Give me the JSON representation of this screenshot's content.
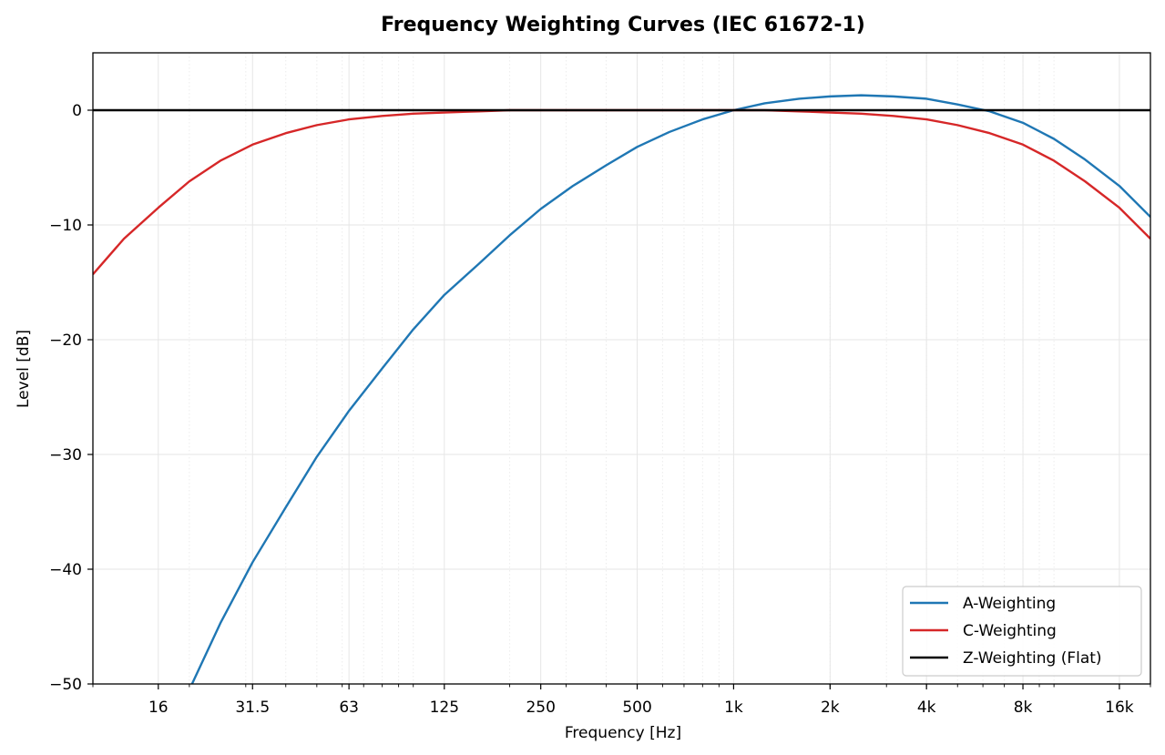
{
  "chart_data": {
    "type": "line",
    "title": "Frequency Weighting Curves (IEC 61672-1)",
    "xlabel": "Frequency [Hz]",
    "ylabel": "Level [dB]",
    "xscale": "log",
    "xlim": [
      10,
      20000
    ],
    "ylim": [
      -50,
      5
    ],
    "xticks": [
      {
        "value": 16,
        "label": "16"
      },
      {
        "value": 31.5,
        "label": "31.5"
      },
      {
        "value": 63,
        "label": "63"
      },
      {
        "value": 125,
        "label": "125"
      },
      {
        "value": 250,
        "label": "250"
      },
      {
        "value": 500,
        "label": "500"
      },
      {
        "value": 1000,
        "label": "1k"
      },
      {
        "value": 2000,
        "label": "2k"
      },
      {
        "value": 4000,
        "label": "4k"
      },
      {
        "value": 8000,
        "label": "8k"
      },
      {
        "value": 16000,
        "label": "16k"
      }
    ],
    "yticks": [
      {
        "value": 0,
        "label": "0"
      },
      {
        "value": -10,
        "label": "−10"
      },
      {
        "value": -20,
        "label": "−20"
      },
      {
        "value": -30,
        "label": "−30"
      },
      {
        "value": -40,
        "label": "−40"
      },
      {
        "value": -50,
        "label": "−50"
      }
    ],
    "grid": true,
    "legend_position": "lower-right",
    "series": [
      {
        "name": "A-Weighting",
        "color": "#1f77b4",
        "x": [
          20,
          25,
          31.5,
          40,
          50,
          63,
          80,
          100,
          125,
          160,
          200,
          250,
          315,
          400,
          500,
          630,
          800,
          1000,
          1250,
          1600,
          2000,
          2500,
          3150,
          4000,
          5000,
          6300,
          8000,
          10000,
          12500,
          16000,
          20000
        ],
        "y": [
          -50.5,
          -44.7,
          -39.4,
          -34.6,
          -30.2,
          -26.2,
          -22.5,
          -19.1,
          -16.1,
          -13.4,
          -10.9,
          -8.6,
          -6.6,
          -4.8,
          -3.2,
          -1.9,
          -0.8,
          0.0,
          0.6,
          1.0,
          1.2,
          1.3,
          1.2,
          1.0,
          0.5,
          -0.1,
          -1.1,
          -2.5,
          -4.3,
          -6.6,
          -9.3
        ]
      },
      {
        "name": "C-Weighting",
        "color": "#d62728",
        "x": [
          10,
          12.5,
          16,
          20,
          25,
          31.5,
          40,
          50,
          63,
          80,
          100,
          125,
          160,
          200,
          250,
          315,
          400,
          500,
          630,
          800,
          1000,
          1250,
          1600,
          2000,
          2500,
          3150,
          4000,
          5000,
          6300,
          8000,
          10000,
          12500,
          16000,
          20000
        ],
        "y": [
          -14.3,
          -11.2,
          -8.5,
          -6.2,
          -4.4,
          -3.0,
          -2.0,
          -1.3,
          -0.8,
          -0.5,
          -0.3,
          -0.2,
          -0.1,
          0.0,
          0.0,
          0.0,
          0.0,
          0.0,
          0.0,
          0.0,
          0.0,
          0.0,
          -0.1,
          -0.2,
          -0.3,
          -0.5,
          -0.8,
          -1.3,
          -2.0,
          -3.0,
          -4.4,
          -6.2,
          -8.5,
          -11.2
        ]
      },
      {
        "name": "Z-Weighting (Flat)",
        "color": "#000000",
        "x": [
          10,
          20000
        ],
        "y": [
          0,
          0
        ]
      }
    ]
  }
}
